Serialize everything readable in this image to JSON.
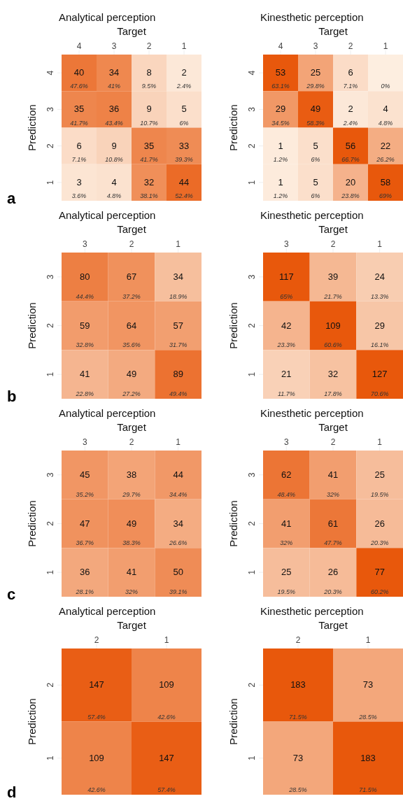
{
  "chart_data": [
    {
      "type": "heatmap",
      "title": "Analytical perception",
      "xlabel": "Target",
      "ylabel": "Prediction",
      "categories": [
        "4",
        "3",
        "2",
        "1"
      ],
      "y_categories": [
        "4",
        "3",
        "2",
        "1"
      ],
      "data_labels": true,
      "cells": [
        [
          40,
          34,
          8,
          2
        ],
        [
          35,
          36,
          9,
          5
        ],
        [
          6,
          9,
          35,
          33
        ],
        [
          3,
          4,
          32,
          44
        ]
      ],
      "annotations": [
        "a",
        "47.6%",
        "41%",
        "9.5%",
        "2.4%",
        "41.7%",
        "43.4%",
        "10.7%",
        "6%",
        "7.1%",
        "10.8%",
        "41.7%",
        "39.3%",
        "3.6%",
        "4.8%",
        "38.1%",
        "52.4%"
      ]
    },
    {
      "type": "heatmap",
      "title": "Kinesthetic perception",
      "xlabel": "Target",
      "ylabel": "Prediction",
      "categories": [
        "4",
        "3",
        "2",
        "1"
      ],
      "y_categories": [
        "4",
        "3",
        "2",
        "1"
      ],
      "data_labels": true,
      "cells": [
        [
          53,
          25,
          6,
          null
        ],
        [
          29,
          49,
          2,
          4
        ],
        [
          1,
          5,
          56,
          22
        ],
        [
          1,
          5,
          20,
          58
        ]
      ],
      "annotations": [
        "63.1%",
        "29.8%",
        "7.1%",
        "0%",
        "34.5%",
        "58.3%",
        "2.4%",
        "4.8%",
        "1.2%",
        "6%",
        "66.7%",
        "26.2%",
        "1.2%",
        "6%",
        "23.8%",
        "69%"
      ]
    },
    {
      "type": "heatmap",
      "title": "Analytical perception",
      "xlabel": "Target",
      "ylabel": "Prediction",
      "categories": [
        "3",
        "2",
        "1"
      ],
      "y_categories": [
        "3",
        "2",
        "1"
      ],
      "data_labels": true,
      "cells": [
        [
          80,
          67,
          34
        ],
        [
          59,
          64,
          57
        ],
        [
          41,
          49,
          89
        ]
      ],
      "annotations": [
        "b",
        "44.4%",
        "37.2%",
        "18.9%",
        "32.8%",
        "35.6%",
        "31.7%",
        "22.8%",
        "27.2%",
        "49.4%"
      ]
    },
    {
      "type": "heatmap",
      "title": "Kinesthetic perception",
      "xlabel": "Target",
      "ylabel": "Prediction",
      "categories": [
        "3",
        "2",
        "1"
      ],
      "y_categories": [
        "3",
        "2",
        "1"
      ],
      "data_labels": true,
      "cells": [
        [
          117,
          39,
          24
        ],
        [
          42,
          109,
          29
        ],
        [
          21,
          32,
          127
        ]
      ],
      "annotations": [
        "65%",
        "21.7%",
        "13.3%",
        "23.3%",
        "60.6%",
        "16.1%",
        "11.7%",
        "17.8%",
        "70.6%"
      ]
    },
    {
      "type": "heatmap",
      "title": "Analytical perception",
      "xlabel": "Target",
      "ylabel": "Prediction",
      "categories": [
        "3",
        "2",
        "1"
      ],
      "y_categories": [
        "3",
        "2",
        "1"
      ],
      "data_labels": true,
      "cells": [
        [
          45,
          38,
          44
        ],
        [
          47,
          49,
          34
        ],
        [
          36,
          41,
          50
        ]
      ],
      "annotations": [
        "c",
        "35.2%",
        "29.7%",
        "34.4%",
        "36.7%",
        "38.3%",
        "26.6%",
        "28.1%",
        "32%",
        "39.1%"
      ]
    },
    {
      "type": "heatmap",
      "title": "Kinesthetic perception",
      "xlabel": "Target",
      "ylabel": "Prediction",
      "categories": [
        "3",
        "2",
        "1"
      ],
      "y_categories": [
        "3",
        "2",
        "1"
      ],
      "data_labels": true,
      "cells": [
        [
          62,
          41,
          25
        ],
        [
          41,
          61,
          26
        ],
        [
          25,
          26,
          77
        ]
      ],
      "annotations": [
        "48.4%",
        "32%",
        "19.5%",
        "32%",
        "47.7%",
        "20.3%",
        "19.5%",
        "20.3%",
        "60.2%"
      ]
    },
    {
      "type": "heatmap",
      "title": "Analytical perception",
      "xlabel": "Target",
      "ylabel": "Prediction",
      "categories": [
        "2",
        "1"
      ],
      "y_categories": [
        "2",
        "1"
      ],
      "data_labels": true,
      "cells": [
        [
          147,
          109
        ],
        [
          109,
          147
        ]
      ],
      "annotations": [
        "d",
        "57.4%",
        "42.6%",
        "42.6%",
        "57.4%"
      ]
    },
    {
      "type": "heatmap",
      "title": "Kinesthetic perception",
      "xlabel": "Target",
      "ylabel": "Prediction",
      "categories": [
        "2",
        "1"
      ],
      "y_categories": [
        "2",
        "1"
      ],
      "data_labels": true,
      "cells": [
        [
          183,
          73
        ],
        [
          73,
          183
        ]
      ],
      "annotations": [
        "71.5%",
        "28.5%",
        "28.5%",
        "71.5%"
      ]
    }
  ]
}
